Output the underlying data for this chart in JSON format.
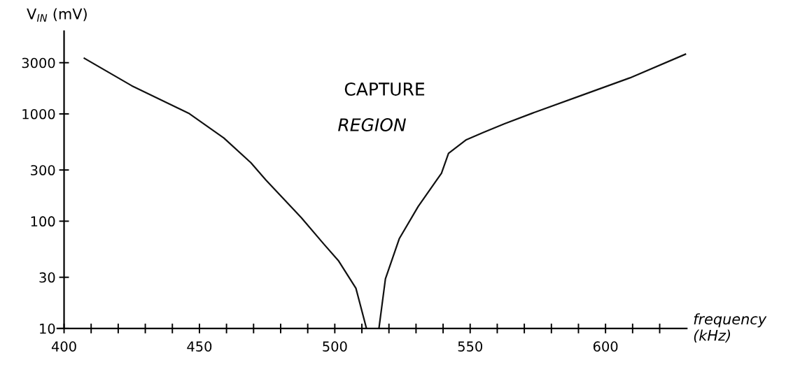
{
  "chart_data": {
    "type": "line",
    "xlabel": "frequency\n(kHz)",
    "ylabel": "V$_{IN}$ (mV)",
    "annotations": [
      "CAPTURE",
      "REGION"
    ],
    "series": [
      {
        "color": "#111111",
        "x": [
          407.5,
          425,
          446,
          459,
          469,
          474.6,
          487.6,
          496,
          501.3,
          507.8,
          511.7
        ],
        "values": [
          3300,
          1830,
          1015,
          597,
          351,
          241,
          108,
          61,
          43,
          23.7,
          10
        ]
      },
      {
        "color": "#111111",
        "x": [
          516.3,
          518.7,
          523.8,
          530.8,
          539.4,
          542,
          548.4,
          555,
          562.7,
          573,
          591,
          609,
          629.5
        ],
        "values": [
          10,
          29,
          68.6,
          137,
          280,
          429,
          571,
          674,
          809,
          1016,
          1483,
          2166,
          3600
        ]
      }
    ],
    "log": "y",
    "xlim": [
      397.5,
      630
    ],
    "ylim": [
      10,
      5900
    ],
    "xticks": [
      400,
      {
        "value": 410,
        "label": null
      },
      {
        "value": 420,
        "label": null
      },
      {
        "value": 430,
        "label": null
      },
      {
        "value": 440,
        "label": null
      },
      450,
      {
        "value": 460,
        "label": null
      },
      {
        "value": 470,
        "label": null
      },
      {
        "value": 480,
        "label": null
      },
      {
        "value": 490,
        "label": null
      },
      500,
      {
        "value": 510,
        "label": null
      },
      {
        "value": 520,
        "label": null
      },
      {
        "value": 530,
        "label": null
      },
      {
        "value": 540,
        "label": null
      },
      550,
      {
        "value": 560,
        "label": null
      },
      {
        "value": 570,
        "label": null
      },
      {
        "value": 580,
        "label": null
      },
      {
        "value": 590,
        "label": null
      },
      600,
      {
        "value": 610,
        "label": null
      },
      {
        "value": 620,
        "label": null
      }
    ],
    "yticks": [
      10,
      30,
      100,
      300,
      1000,
      3000
    ],
    "grid": false,
    "marker": "none",
    "line_style": "solid"
  }
}
